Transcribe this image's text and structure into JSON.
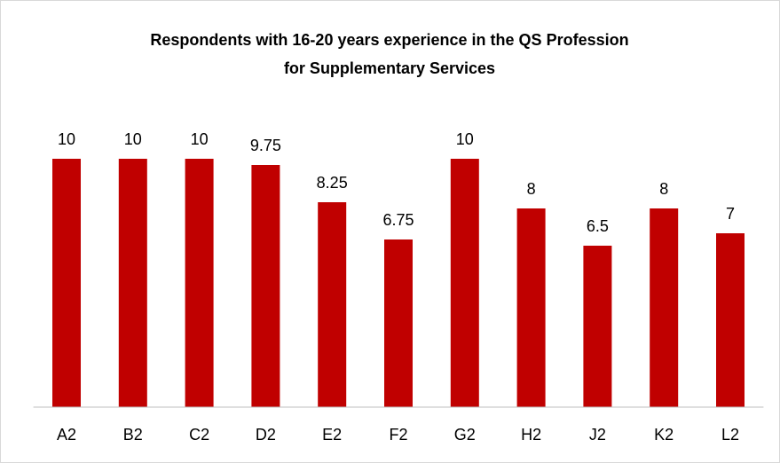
{
  "chart_data": {
    "type": "bar",
    "title": [
      "Respondents with 16-20 years experience in the QS Profession",
      "for Supplementary Services"
    ],
    "categories": [
      "A2",
      "B2",
      "C2",
      "D2",
      "E2",
      "F2",
      "G2",
      "H2",
      "J2",
      "K2",
      "L2"
    ],
    "values": [
      10,
      10,
      10,
      9.75,
      8.25,
      6.75,
      10,
      8,
      6.5,
      8,
      7
    ],
    "color": "#c00000",
    "ylim": [
      0,
      10
    ],
    "grid": false
  }
}
